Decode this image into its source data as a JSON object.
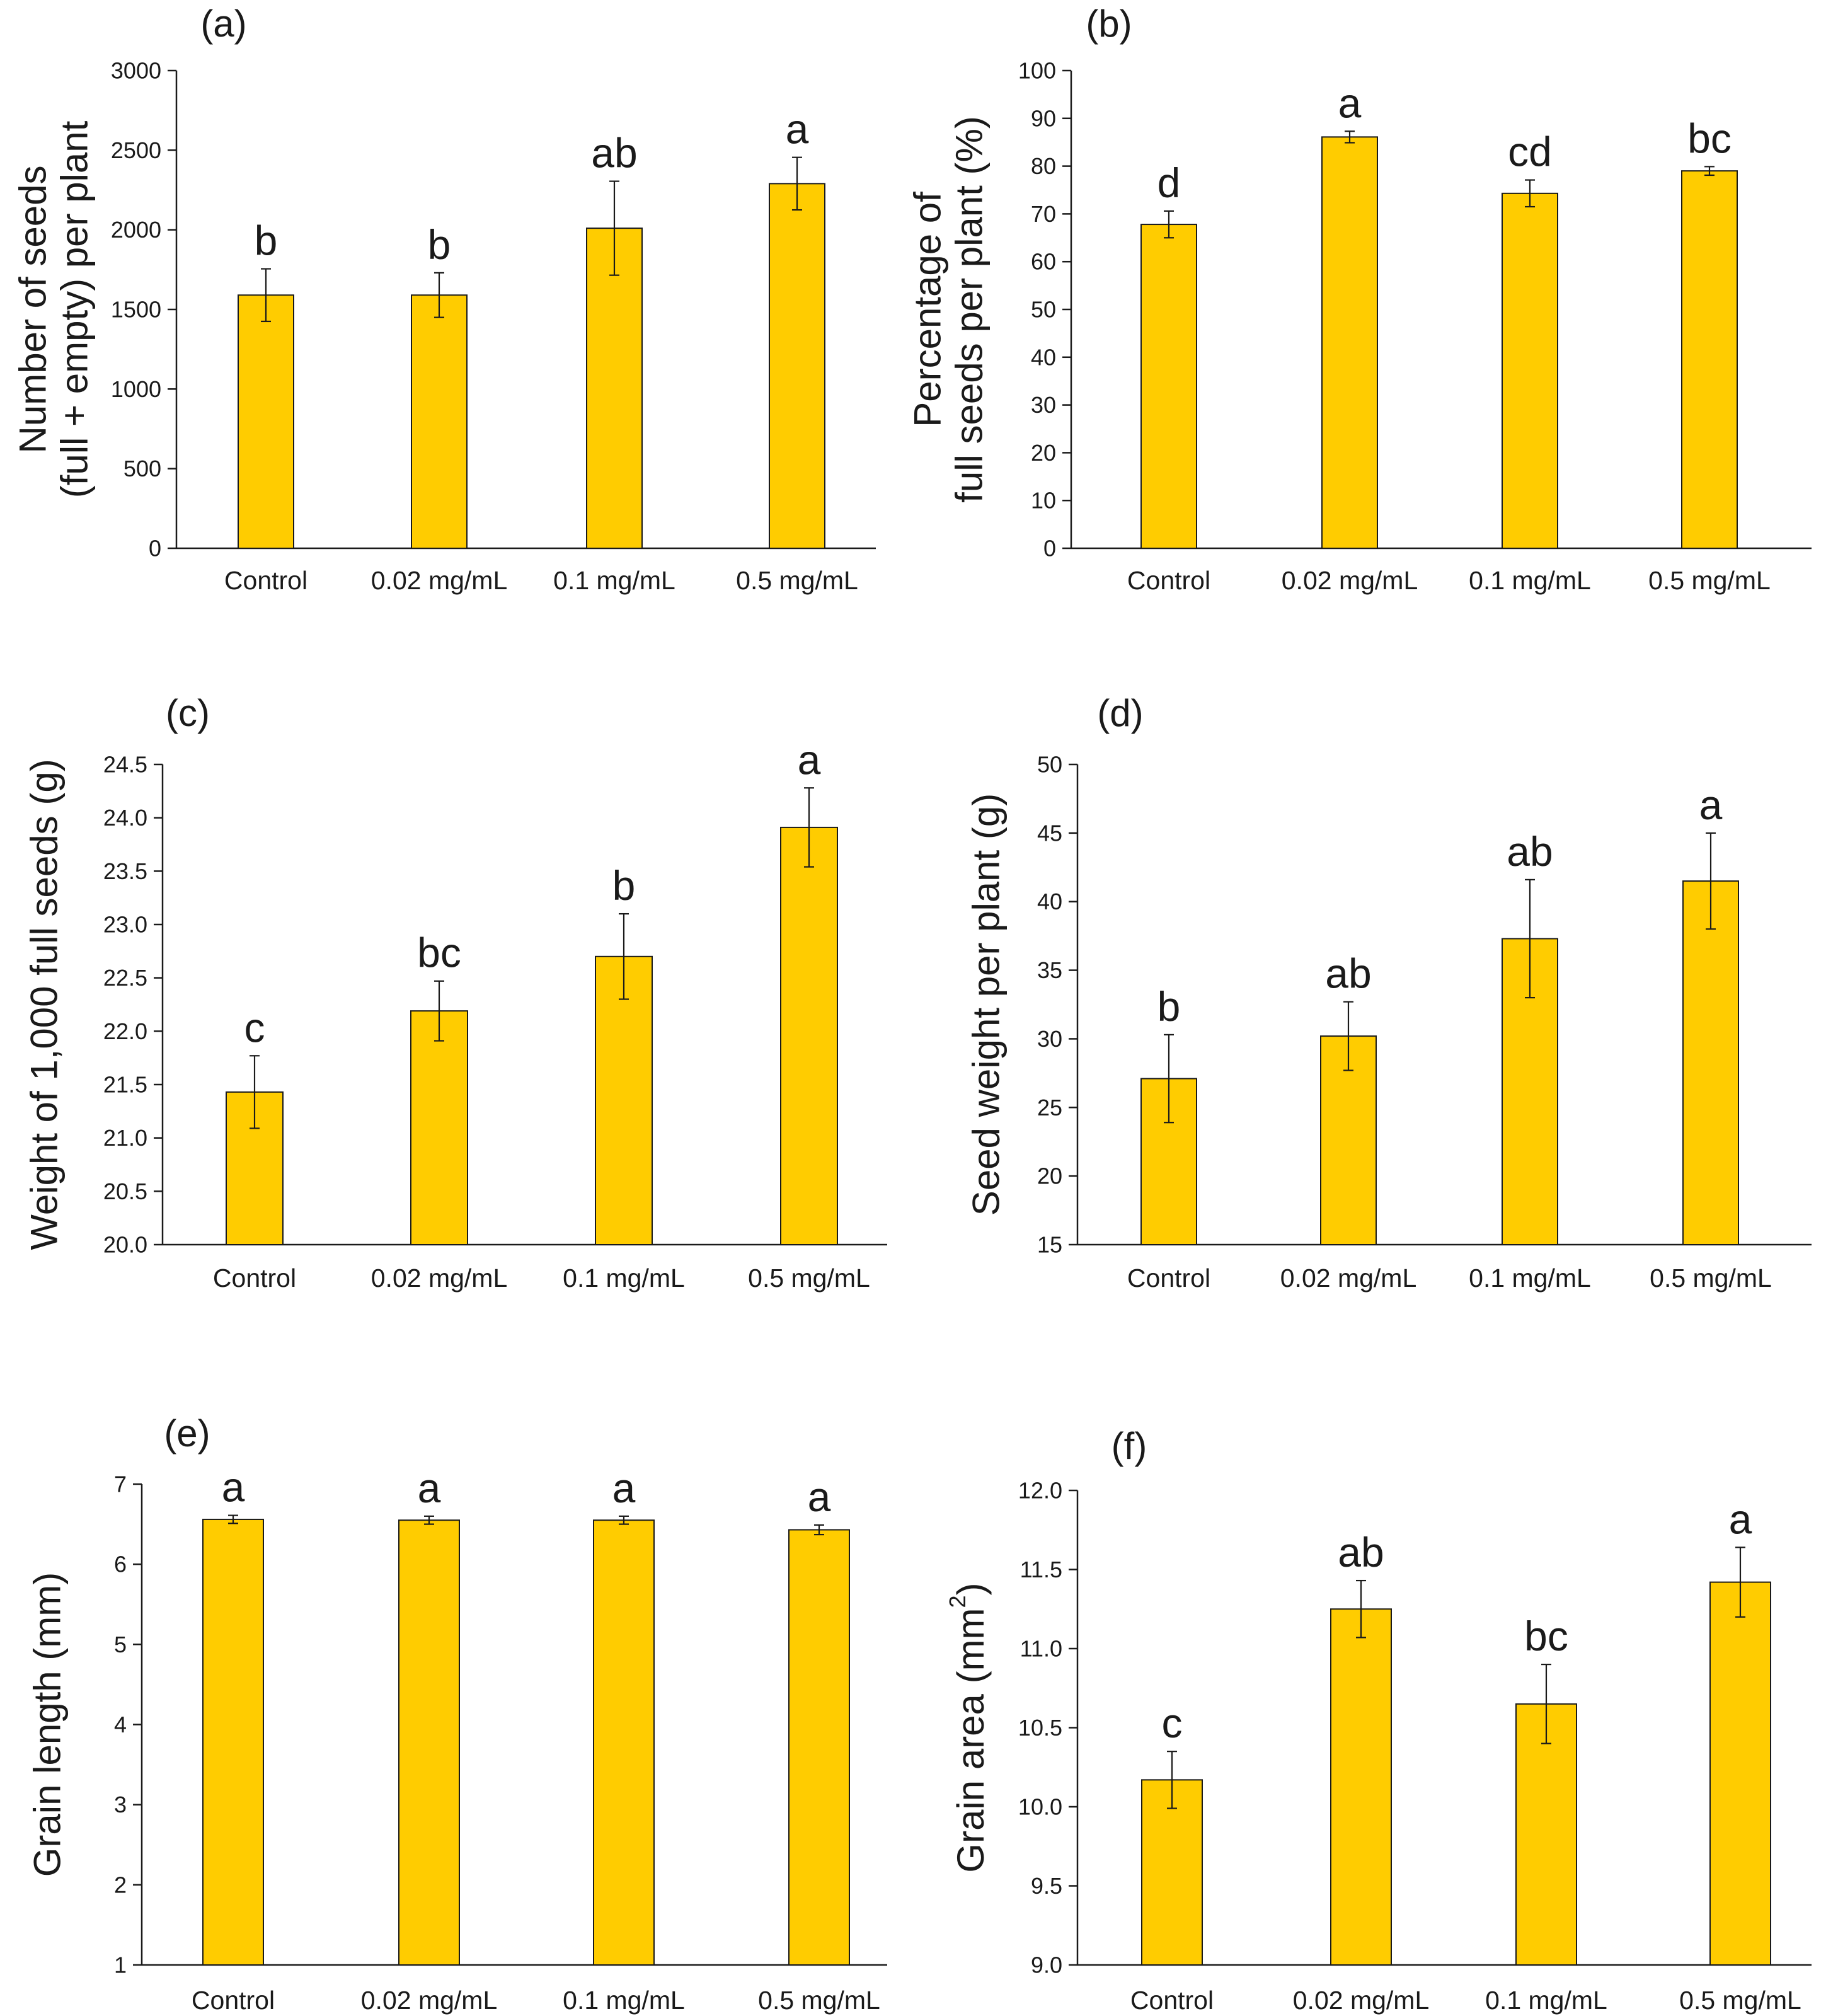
{
  "chart_data": [
    {
      "type": "bar",
      "panel": "(a)",
      "ylabel_lines": [
        "Number of seeds",
        "(full + empty) per plant"
      ],
      "categories": [
        "Control",
        "0.02 mg/mL",
        "0.1 mg/mL",
        "0.5 mg/mL"
      ],
      "values": [
        1590,
        1590,
        2010,
        2290
      ],
      "errors": [
        165,
        140,
        295,
        165
      ],
      "letters": [
        "b",
        "b",
        "ab",
        "a"
      ],
      "ylim": [
        0,
        3000
      ],
      "yticks": [
        0,
        500,
        1000,
        1500,
        2000,
        2500,
        3000
      ],
      "ytick_labels": [
        "0",
        "500",
        "1000",
        "1500",
        "2000",
        "2500",
        "3000"
      ],
      "bar_color": "#FFCC00"
    },
    {
      "type": "bar",
      "panel": "(b)",
      "ylabel_lines": [
        "Percentage of",
        "full seeds per plant (%)"
      ],
      "categories": [
        "Control",
        "0.02 mg/mL",
        "0.1 mg/mL",
        "0.5 mg/mL"
      ],
      "values": [
        67.8,
        86.1,
        74.3,
        79.0
      ],
      "errors": [
        2.8,
        1.2,
        2.8,
        0.9
      ],
      "letters": [
        "d",
        "a",
        "cd",
        "bc"
      ],
      "ylim": [
        0,
        100
      ],
      "yticks": [
        0,
        10,
        20,
        30,
        40,
        50,
        60,
        70,
        80,
        90,
        100
      ],
      "ytick_labels": [
        "0",
        "10",
        "20",
        "30",
        "40",
        "50",
        "60",
        "70",
        "80",
        "90",
        "100"
      ],
      "bar_color": "#FFCC00"
    },
    {
      "type": "bar",
      "panel": "(c)",
      "ylabel_lines": [
        "Weight of 1,000 full seeds (g)"
      ],
      "categories": [
        "Control",
        "0.02 mg/mL",
        "0.1 mg/mL",
        "0.5 mg/mL"
      ],
      "values": [
        21.43,
        22.19,
        22.7,
        23.91
      ],
      "errors": [
        0.34,
        0.28,
        0.4,
        0.37
      ],
      "letters": [
        "c",
        "bc",
        "b",
        "a"
      ],
      "ylim": [
        20.0,
        24.5
      ],
      "yticks": [
        20.0,
        20.5,
        21.0,
        21.5,
        22.0,
        22.5,
        23.0,
        23.5,
        24.0,
        24.5
      ],
      "ytick_labels": [
        "20.0",
        "20.5",
        "21.0",
        "21.5",
        "22.0",
        "22.5",
        "23.0",
        "23.5",
        "24.0",
        "24.5"
      ],
      "bar_color": "#FFCC00"
    },
    {
      "type": "bar",
      "panel": "(d)",
      "ylabel_lines": [
        "Seed weight per plant (g)"
      ],
      "categories": [
        "Control",
        "0.02 mg/mL",
        "0.1 mg/mL",
        "0.5 mg/mL"
      ],
      "values": [
        27.1,
        30.2,
        37.3,
        41.5
      ],
      "errors": [
        3.2,
        2.5,
        4.3,
        3.5
      ],
      "letters": [
        "b",
        "ab",
        "ab",
        "a"
      ],
      "ylim": [
        15,
        50
      ],
      "yticks": [
        15,
        20,
        25,
        30,
        35,
        40,
        45,
        50
      ],
      "ytick_labels": [
        "15",
        "20",
        "25",
        "30",
        "35",
        "40",
        "45",
        "50"
      ],
      "bar_color": "#FFCC00"
    },
    {
      "type": "bar",
      "panel": "(e)",
      "ylabel_lines": [
        "Grain length (mm)"
      ],
      "categories": [
        "Control",
        "0.02 mg/mL",
        "0.1 mg/mL",
        "0.5 mg/mL"
      ],
      "values": [
        6.56,
        6.55,
        6.55,
        6.43
      ],
      "errors": [
        0.05,
        0.05,
        0.05,
        0.06
      ],
      "letters": [
        "a",
        "a",
        "a",
        "a"
      ],
      "ylim": [
        1,
        7
      ],
      "yticks": [
        1,
        2,
        3,
        4,
        5,
        6,
        7
      ],
      "ytick_labels": [
        "1",
        "2",
        "3",
        "4",
        "5",
        "6",
        "7"
      ],
      "bar_color": "#FFCC00"
    },
    {
      "type": "bar",
      "panel": "(f)",
      "ylabel_prefix": "Grain area (mm",
      "ylabel_sup": "2",
      "ylabel_suffix": ")",
      "categories": [
        "Control",
        "0.02 mg/mL",
        "0.1 mg/mL",
        "0.5 mg/mL"
      ],
      "values": [
        10.17,
        11.25,
        10.65,
        11.42
      ],
      "errors": [
        0.18,
        0.18,
        0.25,
        0.22
      ],
      "letters": [
        "c",
        "ab",
        "bc",
        "a"
      ],
      "ylim": [
        9.0,
        12.0
      ],
      "yticks": [
        9.0,
        9.5,
        10.0,
        10.5,
        11.0,
        11.5,
        12.0
      ],
      "ytick_labels": [
        "9.0",
        "9.5",
        "10.0",
        "10.5",
        "11.0",
        "11.5",
        "12.0"
      ],
      "bar_color": "#FFCC00"
    }
  ]
}
